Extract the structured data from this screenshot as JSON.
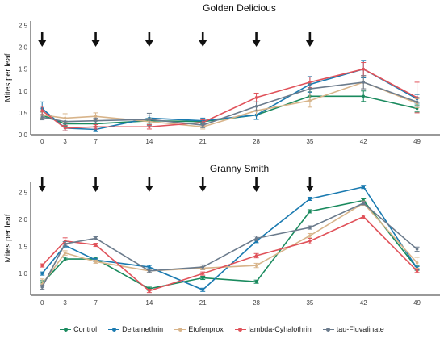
{
  "chart_data": [
    {
      "type": "line",
      "title": "Golden Delicious",
      "xlabel": "",
      "ylabel": "Mites per leaf",
      "x": [
        0,
        3,
        7,
        14,
        21,
        28,
        35,
        42,
        49
      ],
      "xticks": [
        "0",
        "3",
        "7",
        "14",
        "21",
        "28",
        "35",
        "42",
        "49"
      ],
      "yticks": [
        "0.0",
        "0.5",
        "1.0",
        "1.5",
        "2.0",
        "2.5"
      ],
      "ylim": [
        0,
        2.6
      ],
      "xlim": [
        -1.5,
        52
      ],
      "grid": false,
      "application_days": [
        0,
        7,
        14,
        21,
        28,
        35
      ],
      "series": [
        {
          "name": "Control",
          "color": "#1a8a5e",
          "values": [
            0.45,
            0.25,
            0.25,
            0.32,
            0.3,
            0.45,
            0.88,
            0.88,
            0.6
          ],
          "errors": [
            0.07,
            0.06,
            0.06,
            0.06,
            0.06,
            0.1,
            0.1,
            0.12,
            0.08
          ]
        },
        {
          "name": "Deltamethrin",
          "color": "#1a7ab0",
          "values": [
            0.6,
            0.15,
            0.12,
            0.38,
            0.32,
            0.45,
            1.15,
            1.5,
            0.82
          ],
          "errors": [
            0.15,
            0.06,
            0.05,
            0.07,
            0.06,
            0.1,
            0.18,
            0.2,
            0.1
          ]
        },
        {
          "name": "Etofenprox",
          "color": "#d8b48a",
          "values": [
            0.45,
            0.38,
            0.42,
            0.3,
            0.18,
            0.55,
            0.78,
            1.2,
            0.72
          ],
          "errors": [
            0.08,
            0.1,
            0.08,
            0.07,
            0.05,
            0.1,
            0.15,
            0.15,
            0.1
          ]
        },
        {
          "name": "lambda-Cyhalothrin",
          "color": "#e0525a",
          "values": [
            0.55,
            0.15,
            0.18,
            0.18,
            0.28,
            0.85,
            1.2,
            1.5,
            0.85
          ],
          "errors": [
            0.1,
            0.06,
            0.05,
            0.05,
            0.06,
            0.1,
            0.12,
            0.15,
            0.35
          ]
        },
        {
          "name": "tau-Fluvalinate",
          "color": "#6b7b8c",
          "values": [
            0.4,
            0.3,
            0.32,
            0.35,
            0.22,
            0.65,
            1.05,
            1.2,
            0.75
          ],
          "errors": [
            0.06,
            0.06,
            0.06,
            0.14,
            0.06,
            0.1,
            0.12,
            0.15,
            0.1
          ]
        }
      ]
    },
    {
      "type": "line",
      "title": "Granny Smith",
      "xlabel": "",
      "ylabel": "Mites per leaf",
      "x": [
        0,
        3,
        7,
        14,
        21,
        28,
        35,
        42,
        49
      ],
      "xticks": [
        "0",
        "3",
        "7",
        "14",
        "21",
        "28",
        "35",
        "42",
        "49"
      ],
      "yticks": [
        "1.0",
        "1.5",
        "2.0",
        "2.5"
      ],
      "ylim": [
        0.6,
        2.7
      ],
      "xlim": [
        -1.5,
        52
      ],
      "grid": false,
      "application_days": [
        0,
        7,
        14,
        21,
        28,
        35
      ],
      "series": [
        {
          "name": "Control",
          "color": "#1a8a5e",
          "values": [
            0.82,
            1.27,
            1.27,
            0.72,
            0.92,
            0.85,
            2.15,
            2.35,
            1.1
          ],
          "errors": [
            0.05,
            0.03,
            0.03,
            0.03,
            0.03,
            0.03,
            0.03,
            0.03,
            0.04
          ]
        },
        {
          "name": "Deltamethrin",
          "color": "#1a7ab0",
          "values": [
            1.0,
            1.52,
            1.25,
            1.12,
            0.7,
            1.6,
            2.38,
            2.6,
            1.1
          ],
          "errors": [
            0.03,
            0.03,
            0.03,
            0.03,
            0.03,
            0.03,
            0.03,
            0.03,
            0.03
          ]
        },
        {
          "name": "Etofenprox",
          "color": "#d8b48a",
          "values": [
            0.8,
            1.38,
            1.22,
            1.05,
            1.1,
            1.15,
            1.7,
            2.3,
            1.2
          ],
          "errors": [
            0.1,
            0.04,
            0.03,
            0.03,
            0.03,
            0.04,
            0.04,
            0.04,
            0.1
          ]
        },
        {
          "name": "lambda-Cyhalothrin",
          "color": "#e0525a",
          "values": [
            1.15,
            1.6,
            1.53,
            0.68,
            1.0,
            1.33,
            1.6,
            2.05,
            1.05
          ],
          "errors": [
            0.03,
            0.06,
            0.03,
            0.03,
            0.03,
            0.04,
            0.05,
            0.03,
            0.03
          ]
        },
        {
          "name": "tau-Fluvalinate",
          "color": "#6b7b8c",
          "values": [
            0.75,
            1.55,
            1.65,
            1.05,
            1.12,
            1.65,
            1.85,
            2.3,
            1.45
          ],
          "errors": [
            0.04,
            0.04,
            0.03,
            0.03,
            0.04,
            0.04,
            0.03,
            0.03,
            0.04
          ]
        }
      ]
    }
  ],
  "legend": {
    "position": "bottom",
    "items": [
      {
        "label": "Control",
        "color": "#1a8a5e"
      },
      {
        "label": "Deltamethrin",
        "color": "#1a7ab0"
      },
      {
        "label": "Etofenprox",
        "color": "#d8b48a"
      },
      {
        "label": "lambda-Cyhalothrin",
        "color": "#e0525a"
      },
      {
        "label": "tau-Fluvalinate",
        "color": "#6b7b8c"
      }
    ]
  }
}
